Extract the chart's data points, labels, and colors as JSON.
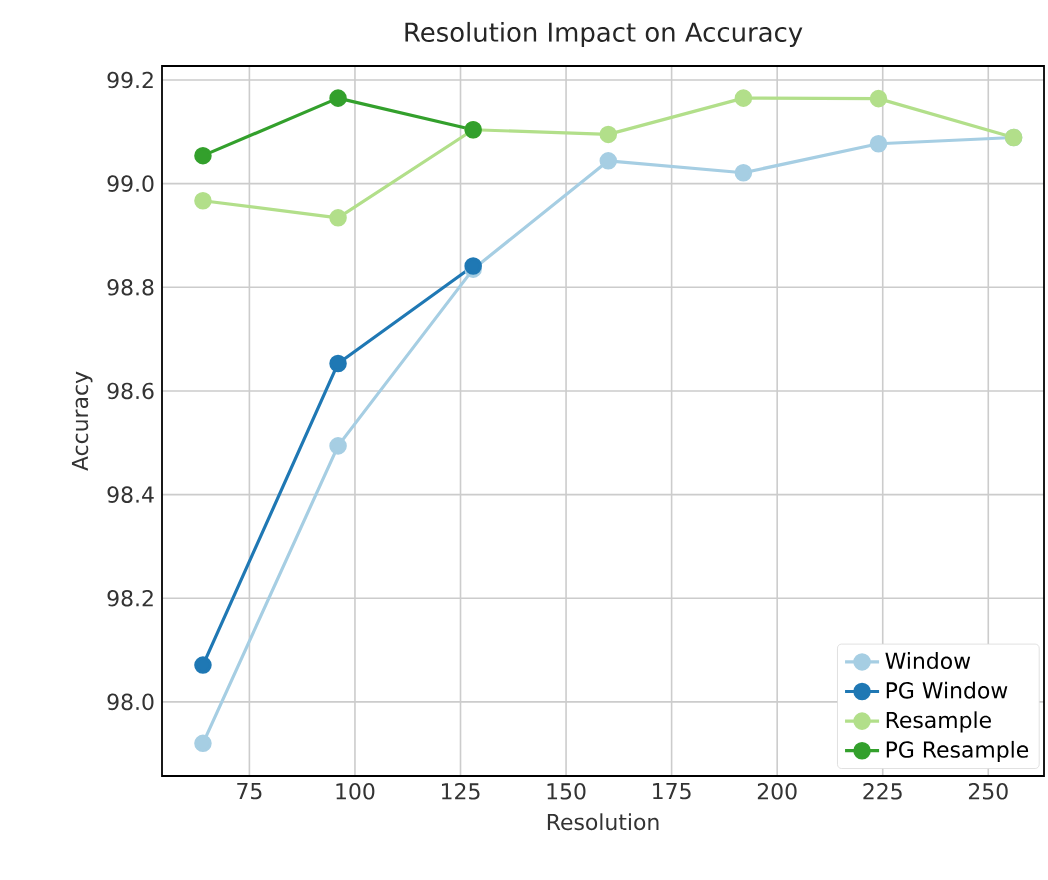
{
  "chart_data": {
    "type": "line",
    "title": "Resolution Impact on Accuracy",
    "xlabel": "Resolution",
    "ylabel": "Accuracy",
    "xlim": [
      54.3,
      263.2
    ],
    "ylim": [
      97.857,
      99.227
    ],
    "xticks": [
      75,
      100,
      125,
      150,
      175,
      200,
      225,
      250
    ],
    "yticks": [
      {
        "value": 98.0,
        "label": "98.0"
      },
      {
        "value": 98.2,
        "label": "98.2"
      },
      {
        "value": 98.4,
        "label": "98.4"
      },
      {
        "value": 98.6,
        "label": "98.6"
      },
      {
        "value": 98.8,
        "label": "98.8"
      },
      {
        "value": 99.0,
        "label": "99.0"
      },
      {
        "value": 99.2,
        "label": "99.2"
      }
    ],
    "grid": true,
    "legend": "bottom right",
    "marker": "circle",
    "line_style": "solid",
    "series": [
      {
        "name": "Window",
        "color": "#a6cee3",
        "x": [
          64,
          96,
          128,
          160,
          192,
          224,
          256
        ],
        "values": [
          97.92,
          98.494,
          98.835,
          99.044,
          99.021,
          99.077,
          99.089
        ]
      },
      {
        "name": "PG Window",
        "color": "#1f78b4",
        "x": [
          64,
          96,
          128
        ],
        "values": [
          98.071,
          98.653,
          98.841
        ]
      },
      {
        "name": "Resample",
        "color": "#b2df8a",
        "x": [
          64,
          96,
          128,
          160,
          192,
          224,
          256
        ],
        "values": [
          98.967,
          98.934,
          99.104,
          99.095,
          99.165,
          99.164,
          99.089
        ]
      },
      {
        "name": "PG Resample",
        "color": "#33a02c",
        "x": [
          64,
          96,
          128
        ],
        "values": [
          99.054,
          99.165,
          99.104
        ]
      }
    ]
  }
}
